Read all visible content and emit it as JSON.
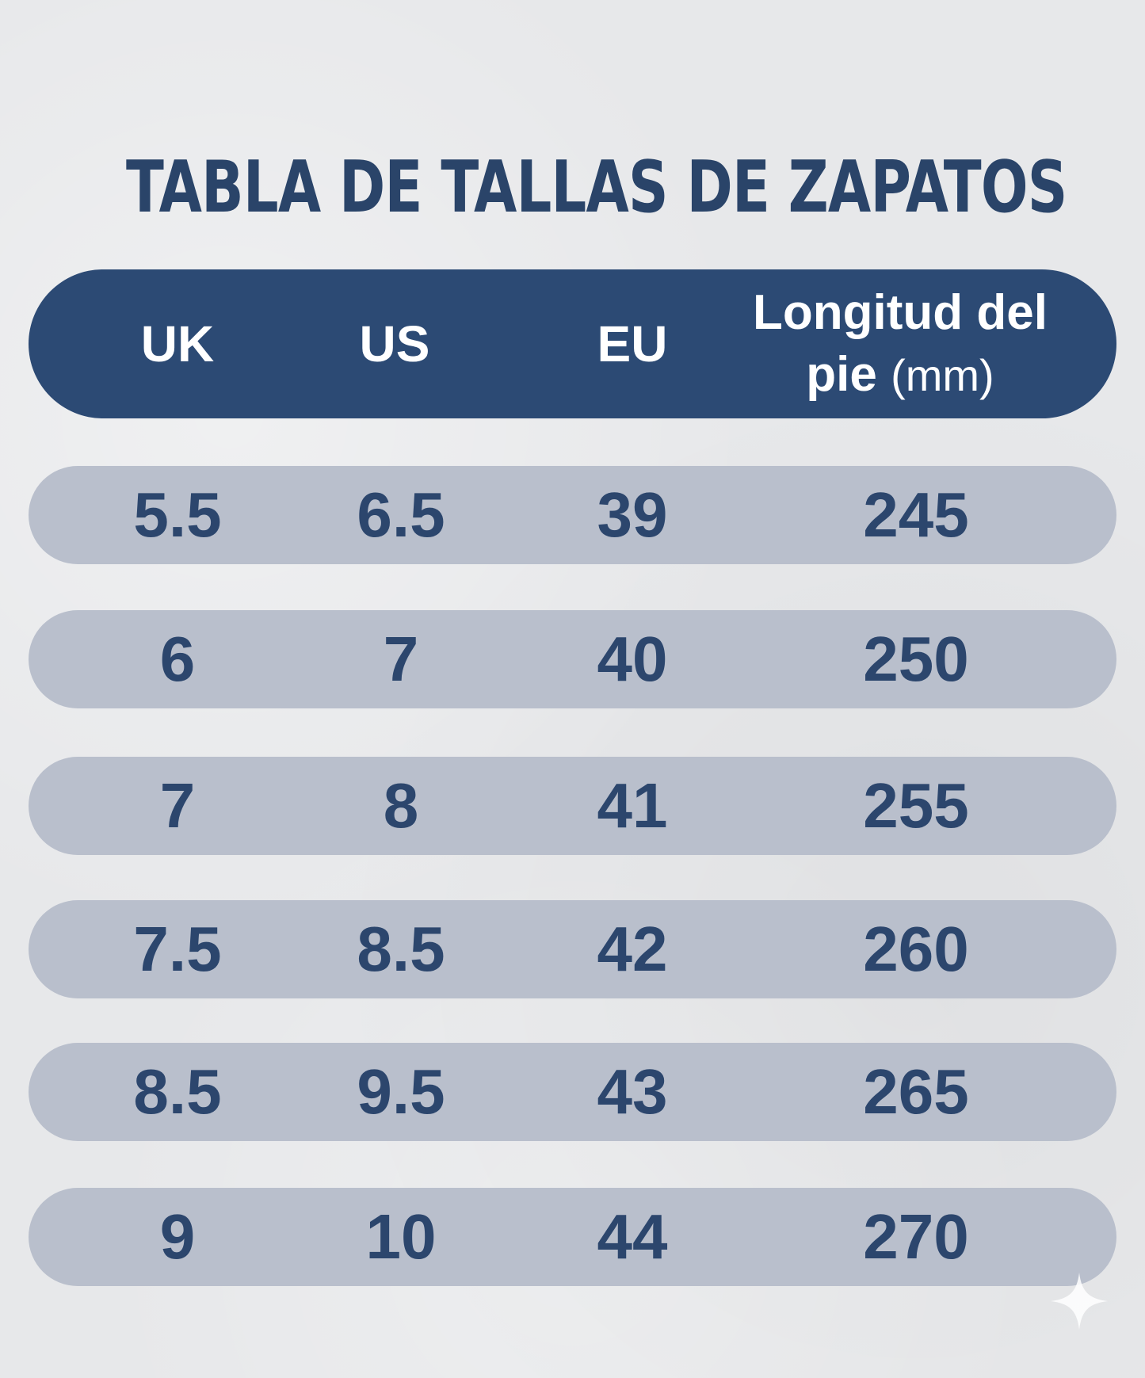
{
  "title": "TABLA DE TALLAS DE ZAPATOS",
  "header": {
    "uk": "UK",
    "us": "US",
    "eu": "EU",
    "length_line1": "Longitud del",
    "length_line2": "pie",
    "length_unit": "(mm)"
  },
  "rows": [
    {
      "uk": "5.5",
      "us": "6.5",
      "eu": "39",
      "length": "245"
    },
    {
      "uk": "6",
      "us": "7",
      "eu": "40",
      "length": "250"
    },
    {
      "uk": "7",
      "us": "8",
      "eu": "41",
      "length": "255"
    },
    {
      "uk": "7.5",
      "us": "8.5",
      "eu": "42",
      "length": "260"
    },
    {
      "uk": "8.5",
      "us": "9.5",
      "eu": "43",
      "length": "265"
    },
    {
      "uk": "9",
      "us": "10",
      "eu": "44",
      "length": "270"
    }
  ],
  "colors": {
    "background": "#e7e8ea",
    "header_fill": "#2c4a74",
    "row_fill": "#b9bfcc",
    "text_dark": "#2c466d",
    "text_light": "#ffffff"
  },
  "icons": {
    "corner_mark": "sparkle-icon"
  }
}
